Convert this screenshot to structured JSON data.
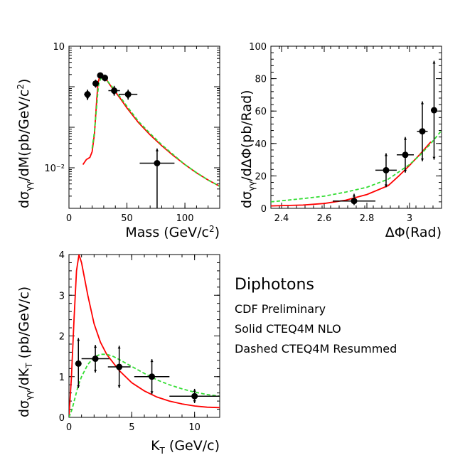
{
  "legend": {
    "title": "Diphotons",
    "lines": [
      "CDF Preliminary",
      "Solid CTEQ4M NLO",
      "Dashed CTEQ4M Resummed"
    ]
  },
  "colors": {
    "solid": "#ff0000",
    "dashed": "#33dd33",
    "points": "#000000"
  },
  "chart_data": [
    {
      "type": "line",
      "panel": "mass",
      "xlabel": "Mass (GeV/c²)",
      "ylabel": "dσγγ/dM(pb/GeV/c²)",
      "xlim": [
        0,
        130
      ],
      "ylim": [
        0.001,
        10
      ],
      "yscale": "log",
      "xticks": [
        0,
        50,
        100
      ],
      "yticklabels": [
        {
          "value": 10,
          "label": "10"
        },
        {
          "value": 0.01,
          "label": "10⁻²"
        }
      ],
      "points": [
        {
          "x": 16,
          "y": 0.65,
          "xerr": 3,
          "ylo": 0.47,
          "yhi": 0.85
        },
        {
          "x": 23,
          "y": 1.2,
          "xerr": 2,
          "ylo": 0.95,
          "yhi": 1.5
        },
        {
          "x": 27,
          "y": 1.9,
          "xerr": 2,
          "ylo": 1.6,
          "yhi": 2.2
        },
        {
          "x": 31,
          "y": 1.65,
          "xerr": 2,
          "ylo": 1.35,
          "yhi": 2.0
        },
        {
          "x": 39,
          "y": 0.8,
          "xerr": 5,
          "ylo": 0.6,
          "yhi": 1.05
        },
        {
          "x": 51,
          "y": 0.65,
          "xerr": 8,
          "ylo": 0.48,
          "yhi": 0.85
        },
        {
          "x": 76,
          "y": 0.013,
          "xerr": 15,
          "ylo": 0.001,
          "yhi": 0.03
        }
      ],
      "series": [
        {
          "name": "Solid CTEQ4M NLO",
          "style": "solid",
          "x": [
            12,
            15,
            18,
            20,
            22,
            24,
            25,
            26,
            28,
            30,
            33,
            36,
            40,
            45,
            50,
            60,
            70,
            80,
            90,
            100,
            110,
            120,
            130
          ],
          "y": [
            0.012,
            0.016,
            0.018,
            0.025,
            0.07,
            0.5,
            1.2,
            1.6,
            1.9,
            1.8,
            1.4,
            1.05,
            0.75,
            0.48,
            0.3,
            0.13,
            0.065,
            0.035,
            0.02,
            0.012,
            0.0075,
            0.005,
            0.0035
          ]
        },
        {
          "name": "Dashed CTEQ4M Resummed",
          "style": "dashed",
          "x": [
            20,
            22,
            24,
            25,
            26,
            28,
            30,
            33,
            36,
            40,
            45,
            50,
            60,
            70,
            80,
            90,
            100,
            110,
            120,
            130
          ],
          "y": [
            0.03,
            0.08,
            0.35,
            0.8,
            1.3,
            1.7,
            1.7,
            1.4,
            1.1,
            0.8,
            0.52,
            0.33,
            0.14,
            0.07,
            0.037,
            0.021,
            0.012,
            0.0076,
            0.005,
            0.0035
          ]
        }
      ]
    },
    {
      "type": "line",
      "panel": "dphi",
      "xlabel": "ΔΦ(Rad)",
      "ylabel": "dσγγ/dΔΦ(pb/Rad)",
      "xlim": [
        2.35,
        3.15
      ],
      "ylim": [
        0,
        100
      ],
      "yscale": "linear",
      "xticks": [
        2.4,
        2.6,
        2.8,
        3
      ],
      "yticks": [
        0,
        20,
        40,
        60,
        80,
        100
      ],
      "points": [
        {
          "x": 2.74,
          "y": 4.5,
          "xerr": 0.1,
          "ylo": 2,
          "yhi": 9
        },
        {
          "x": 2.89,
          "y": 23.5,
          "xerr": 0.05,
          "ylo": 13,
          "yhi": 34
        },
        {
          "x": 2.98,
          "y": 33,
          "xerr": 0.04,
          "ylo": 22,
          "yhi": 44
        },
        {
          "x": 3.06,
          "y": 47.5,
          "xerr": 0.025,
          "ylo": 29,
          "yhi": 66
        },
        {
          "x": 3.115,
          "y": 60.5,
          "xerr": 0.015,
          "ylo": 30,
          "yhi": 91
        }
      ],
      "series": [
        {
          "name": "Solid CTEQ4M NLO",
          "style": "solid",
          "x": [
            2.35,
            2.5,
            2.6,
            2.7,
            2.8,
            2.9,
            2.95,
            3.0,
            3.05,
            3.1
          ],
          "y": [
            1.5,
            2.0,
            3.0,
            5.0,
            8.5,
            14.0,
            20.0,
            26.5,
            33.5,
            41.0
          ]
        },
        {
          "name": "Dashed CTEQ4M Resummed",
          "style": "dashed",
          "x": [
            2.35,
            2.5,
            2.6,
            2.7,
            2.8,
            2.9,
            3.0,
            3.05,
            3.1,
            3.15
          ],
          "y": [
            4.0,
            6.0,
            7.5,
            10.0,
            13.0,
            18.0,
            27.0,
            33.0,
            40.0,
            48.0
          ]
        }
      ]
    },
    {
      "type": "line",
      "panel": "kt",
      "xlabel": "KT (GeV/c)",
      "ylabel": "dσγγ/dKT (pb/GeV/c)",
      "xlim": [
        0,
        12
      ],
      "ylim": [
        0,
        4
      ],
      "yscale": "linear",
      "xticks": [
        0,
        5,
        10
      ],
      "yticks": [
        0,
        1,
        2,
        3,
        4
      ],
      "points": [
        {
          "x": 0.75,
          "y": 1.32,
          "xerr": 0.25,
          "ylo": 0.72,
          "yhi": 1.95
        },
        {
          "x": 2.1,
          "y": 1.44,
          "xerr": 1.1,
          "ylo": 1.1,
          "yhi": 1.78
        },
        {
          "x": 4.0,
          "y": 1.24,
          "xerr": 0.9,
          "ylo": 0.72,
          "yhi": 1.76
        },
        {
          "x": 6.6,
          "y": 1.0,
          "xerr": 1.4,
          "ylo": 0.57,
          "yhi": 1.43
        },
        {
          "x": 10.0,
          "y": 0.52,
          "xerr": 2.0,
          "ylo": 0.35,
          "yhi": 0.7
        }
      ],
      "series": [
        {
          "name": "Solid CTEQ4M NLO",
          "style": "solid",
          "x": [
            0,
            0.2,
            0.4,
            0.6,
            0.8,
            1.0,
            1.5,
            2.0,
            2.5,
            3.0,
            4.0,
            5.0,
            6.0,
            7.0,
            8.0,
            9.0,
            10.0,
            11.0,
            12.0
          ],
          "y": [
            0,
            1.0,
            2.4,
            3.6,
            4.0,
            3.8,
            3.0,
            2.3,
            1.85,
            1.55,
            1.15,
            0.85,
            0.65,
            0.5,
            0.4,
            0.33,
            0.28,
            0.25,
            0.24
          ]
        },
        {
          "name": "Dashed CTEQ4M Resummed",
          "style": "dashed",
          "x": [
            0,
            0.25,
            0.5,
            0.75,
            1.0,
            1.5,
            2.0,
            2.5,
            3.0,
            3.5,
            4.0,
            5.0,
            6.0,
            7.0,
            8.0,
            9.0,
            10.0,
            11.0,
            12.0
          ],
          "y": [
            0,
            0.2,
            0.5,
            0.8,
            1.0,
            1.3,
            1.48,
            1.55,
            1.55,
            1.5,
            1.42,
            1.25,
            1.08,
            0.92,
            0.8,
            0.7,
            0.62,
            0.56,
            0.52
          ]
        }
      ]
    }
  ]
}
